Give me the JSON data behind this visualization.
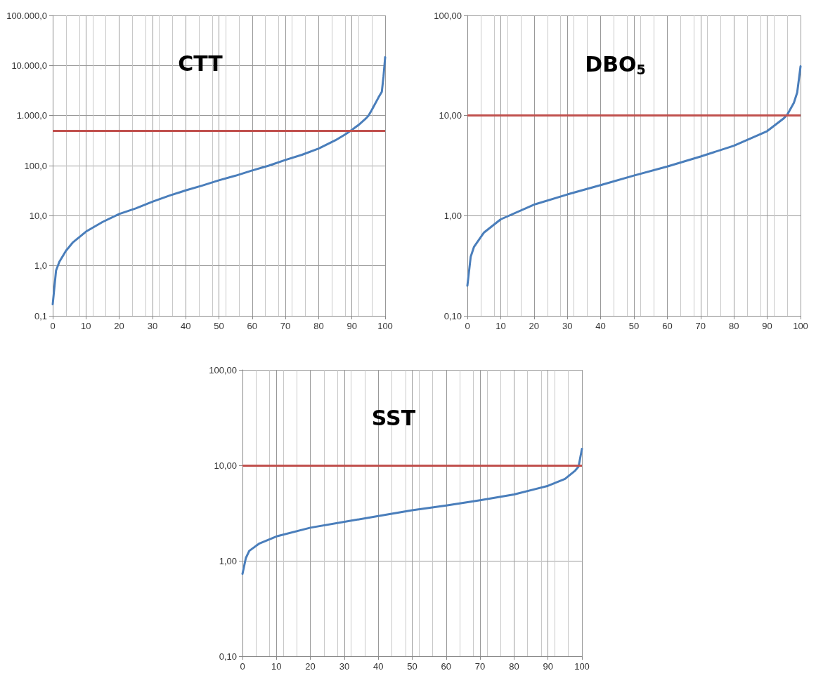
{
  "chart_data": [
    {
      "type": "line",
      "title": "CTT",
      "log": "y",
      "grid": true,
      "marker": "none",
      "line_style": "solid",
      "xlim": [
        0,
        100
      ],
      "xticks": [
        0,
        10,
        20,
        30,
        40,
        50,
        60,
        70,
        80,
        90,
        100
      ],
      "ylim": [
        0.1,
        100000
      ],
      "yticks": [
        {
          "value": 0.1,
          "label": "0,1"
        },
        {
          "value": 1,
          "label": "1,0"
        },
        {
          "value": 10,
          "label": "10,0"
        },
        {
          "value": 100,
          "label": "100,0"
        },
        {
          "value": 1000,
          "label": "1.000,0"
        },
        {
          "value": 10000,
          "label": "10.000,0"
        },
        {
          "value": 100000,
          "label": "100.000,0"
        }
      ],
      "x": [
        0,
        1,
        2,
        4,
        6,
        10,
        15,
        20,
        25,
        30,
        35,
        40,
        45,
        50,
        55,
        60,
        65,
        70,
        75,
        80,
        85,
        88,
        90,
        92,
        94,
        95,
        96,
        98,
        99,
        99.5,
        100
      ],
      "series": [
        {
          "color": "#4a7ebb",
          "values": [
            0.17,
            0.8,
            1.2,
            2.0,
            2.9,
            4.8,
            7.5,
            10.8,
            14,
            19,
            25,
            32,
            40,
            51,
            63,
            80,
            100,
            130,
            165,
            220,
            320,
            420,
            520,
            650,
            850,
            1000,
            1300,
            2300,
            3000,
            6000,
            14700
          ]
        }
      ],
      "ref_lines": [
        {
          "axis": "y",
          "value": 500,
          "color": "#c0504d"
        }
      ]
    },
    {
      "type": "line",
      "title": "DBO$_{5}$",
      "log": "y",
      "grid": true,
      "marker": "none",
      "line_style": "solid",
      "xlim": [
        0,
        100
      ],
      "xticks": [
        0,
        10,
        20,
        30,
        40,
        50,
        60,
        70,
        80,
        90,
        100
      ],
      "ylim": [
        0.1,
        100
      ],
      "yticks": [
        {
          "value": 0.1,
          "label": "0,10"
        },
        {
          "value": 1,
          "label": "1,00"
        },
        {
          "value": 10,
          "label": "10,00"
        },
        {
          "value": 100,
          "label": "100,00"
        }
      ],
      "x": [
        0,
        1,
        2,
        5,
        10,
        20,
        30,
        40,
        50,
        60,
        70,
        80,
        90,
        95,
        96,
        98,
        99,
        100
      ],
      "series": [
        {
          "color": "#4a7ebb",
          "values": [
            0.2,
            0.39,
            0.49,
            0.68,
            0.92,
            1.29,
            1.63,
            2.02,
            2.52,
            3.1,
            3.9,
            5.0,
            7.0,
            9.4,
            10.2,
            13.4,
            17,
            31
          ]
        }
      ],
      "ref_lines": [
        {
          "axis": "y",
          "value": 10,
          "color": "#c0504d"
        }
      ]
    },
    {
      "type": "line",
      "title": "SST",
      "log": "y",
      "grid": true,
      "marker": "none",
      "line_style": "solid",
      "xlim": [
        0,
        100
      ],
      "xticks": [
        0,
        10,
        20,
        30,
        40,
        50,
        60,
        70,
        80,
        90,
        100
      ],
      "ylim": [
        0.1,
        100
      ],
      "yticks": [
        {
          "value": 0.1,
          "label": "0,10"
        },
        {
          "value": 1,
          "label": "1,00"
        },
        {
          "value": 10,
          "label": "10,00"
        },
        {
          "value": 100,
          "label": "100,00"
        }
      ],
      "x": [
        0,
        1,
        2,
        5,
        10,
        20,
        30,
        40,
        50,
        60,
        70,
        80,
        90,
        95,
        98,
        99,
        100
      ],
      "series": [
        {
          "color": "#4a7ebb",
          "values": [
            0.73,
            1.07,
            1.27,
            1.52,
            1.8,
            2.22,
            2.56,
            2.94,
            3.38,
            3.8,
            4.3,
            4.95,
            6.1,
            7.2,
            8.8,
            9.7,
            14.9
          ]
        }
      ],
      "ref_lines": [
        {
          "axis": "y",
          "value": 10,
          "color": "#c0504d"
        }
      ]
    }
  ]
}
